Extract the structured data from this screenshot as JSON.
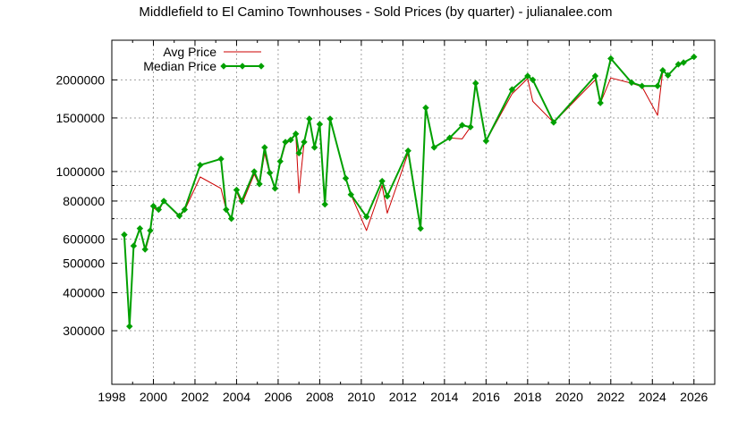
{
  "chart_data": {
    "type": "line",
    "title": "Middlefield to El Camino Townhouses - Sold Prices (by quarter) - julianalee.com",
    "xlabel": "",
    "ylabel": "",
    "xlim": [
      1998,
      2027
    ],
    "ylim": [
      200000,
      2700000
    ],
    "yscale": "log",
    "grid": true,
    "legend_position": "top-left",
    "x_ticks": [
      1998,
      2000,
      2002,
      2004,
      2006,
      2008,
      2010,
      2012,
      2014,
      2016,
      2018,
      2020,
      2022,
      2024,
      2026
    ],
    "x_tick_labels": [
      "1998",
      "2000",
      "2002",
      "2004",
      "2006",
      "2008",
      "2010",
      "2012",
      "2014",
      "2016",
      "2018",
      "2020",
      "2022",
      "2024",
      "2026"
    ],
    "y_ticks": [
      300000,
      400000,
      500000,
      600000,
      800000,
      1000000,
      1500000,
      2000000
    ],
    "y_tick_labels": [
      "300000",
      "400000",
      "500000",
      "600000",
      "800000",
      "1000000",
      "1500000",
      "2000000"
    ],
    "y_minor_ticks": [
      700000,
      900000
    ],
    "series": [
      {
        "name": "Avg Price",
        "color": "#cc0000",
        "marker": "none",
        "points": [
          [
            1998.6,
            610000
          ],
          [
            1998.85,
            310000
          ],
          [
            1999.05,
            560000
          ],
          [
            1999.35,
            660000
          ],
          [
            1999.6,
            545000
          ],
          [
            1999.85,
            630000
          ],
          [
            2000.0,
            760000
          ],
          [
            2000.25,
            740000
          ],
          [
            2000.5,
            800000
          ],
          [
            2001.25,
            710000
          ],
          [
            2001.5,
            745000
          ],
          [
            2002.25,
            960000
          ],
          [
            2003.25,
            880000
          ],
          [
            2003.5,
            750000
          ],
          [
            2003.75,
            700000
          ],
          [
            2004.0,
            860000
          ],
          [
            2004.25,
            780000
          ],
          [
            2004.85,
            980000
          ],
          [
            2005.1,
            900000
          ],
          [
            2005.35,
            1150000
          ],
          [
            2005.6,
            980000
          ],
          [
            2005.85,
            880000
          ],
          [
            2006.1,
            1070000
          ],
          [
            2006.35,
            1230000
          ],
          [
            2006.6,
            1270000
          ],
          [
            2006.85,
            1320000
          ],
          [
            2007.0,
            850000
          ],
          [
            2007.25,
            1250000
          ],
          [
            2007.5,
            1480000
          ],
          [
            2007.75,
            1200000
          ],
          [
            2008.0,
            1420000
          ],
          [
            2008.25,
            780000
          ],
          [
            2008.5,
            1490000
          ],
          [
            2009.25,
            950000
          ],
          [
            2009.5,
            840000
          ],
          [
            2010.25,
            640000
          ],
          [
            2011.0,
            900000
          ],
          [
            2011.25,
            730000
          ],
          [
            2012.25,
            1150000
          ],
          [
            2012.85,
            650000
          ],
          [
            2013.1,
            1600000
          ],
          [
            2013.5,
            1200000
          ],
          [
            2014.25,
            1290000
          ],
          [
            2014.85,
            1280000
          ],
          [
            2015.25,
            1400000
          ],
          [
            2015.5,
            1940000
          ],
          [
            2016.0,
            1260000
          ],
          [
            2017.25,
            1800000
          ],
          [
            2018.0,
            2020000
          ],
          [
            2018.25,
            1700000
          ],
          [
            2019.25,
            1450000
          ],
          [
            2021.25,
            2000000
          ],
          [
            2021.5,
            1680000
          ],
          [
            2022.0,
            2030000
          ],
          [
            2023.0,
            1950000
          ],
          [
            2023.5,
            1900000
          ],
          [
            2024.25,
            1530000
          ],
          [
            2024.5,
            2150000
          ],
          [
            2024.75,
            2070000
          ],
          [
            2025.25,
            2250000
          ],
          [
            2025.5,
            2280000
          ],
          [
            2026.0,
            2380000
          ]
        ]
      },
      {
        "name": "Median Price",
        "color": "#00a000",
        "marker": "diamond",
        "points": [
          [
            1998.6,
            620000
          ],
          [
            1998.85,
            310000
          ],
          [
            1999.05,
            570000
          ],
          [
            1999.35,
            650000
          ],
          [
            1999.6,
            555000
          ],
          [
            1999.85,
            640000
          ],
          [
            2000.0,
            770000
          ],
          [
            2000.25,
            750000
          ],
          [
            2000.5,
            800000
          ],
          [
            2001.25,
            715000
          ],
          [
            2001.5,
            750000
          ],
          [
            2002.25,
            1050000
          ],
          [
            2003.25,
            1100000
          ],
          [
            2003.5,
            750000
          ],
          [
            2003.75,
            700000
          ],
          [
            2004.0,
            870000
          ],
          [
            2004.25,
            800000
          ],
          [
            2004.85,
            1000000
          ],
          [
            2005.1,
            910000
          ],
          [
            2005.35,
            1200000
          ],
          [
            2005.6,
            990000
          ],
          [
            2005.85,
            880000
          ],
          [
            2006.1,
            1080000
          ],
          [
            2006.35,
            1250000
          ],
          [
            2006.6,
            1270000
          ],
          [
            2006.85,
            1330000
          ],
          [
            2007.0,
            1150000
          ],
          [
            2007.25,
            1250000
          ],
          [
            2007.5,
            1490000
          ],
          [
            2007.75,
            1200000
          ],
          [
            2008.0,
            1430000
          ],
          [
            2008.25,
            780000
          ],
          [
            2008.5,
            1490000
          ],
          [
            2009.25,
            950000
          ],
          [
            2009.5,
            840000
          ],
          [
            2010.25,
            710000
          ],
          [
            2011.0,
            930000
          ],
          [
            2011.25,
            830000
          ],
          [
            2012.25,
            1170000
          ],
          [
            2012.85,
            650000
          ],
          [
            2013.1,
            1620000
          ],
          [
            2013.5,
            1200000
          ],
          [
            2014.25,
            1290000
          ],
          [
            2014.85,
            1420000
          ],
          [
            2015.25,
            1400000
          ],
          [
            2015.5,
            1950000
          ],
          [
            2016.0,
            1260000
          ],
          [
            2017.25,
            1860000
          ],
          [
            2018.0,
            2060000
          ],
          [
            2018.25,
            2000000
          ],
          [
            2019.25,
            1450000
          ],
          [
            2021.25,
            2060000
          ],
          [
            2021.5,
            1680000
          ],
          [
            2022.0,
            2350000
          ],
          [
            2023.0,
            1960000
          ],
          [
            2023.5,
            1910000
          ],
          [
            2024.25,
            1910000
          ],
          [
            2024.5,
            2150000
          ],
          [
            2024.75,
            2070000
          ],
          [
            2025.25,
            2250000
          ],
          [
            2025.5,
            2280000
          ],
          [
            2026.0,
            2380000
          ]
        ]
      }
    ]
  }
}
